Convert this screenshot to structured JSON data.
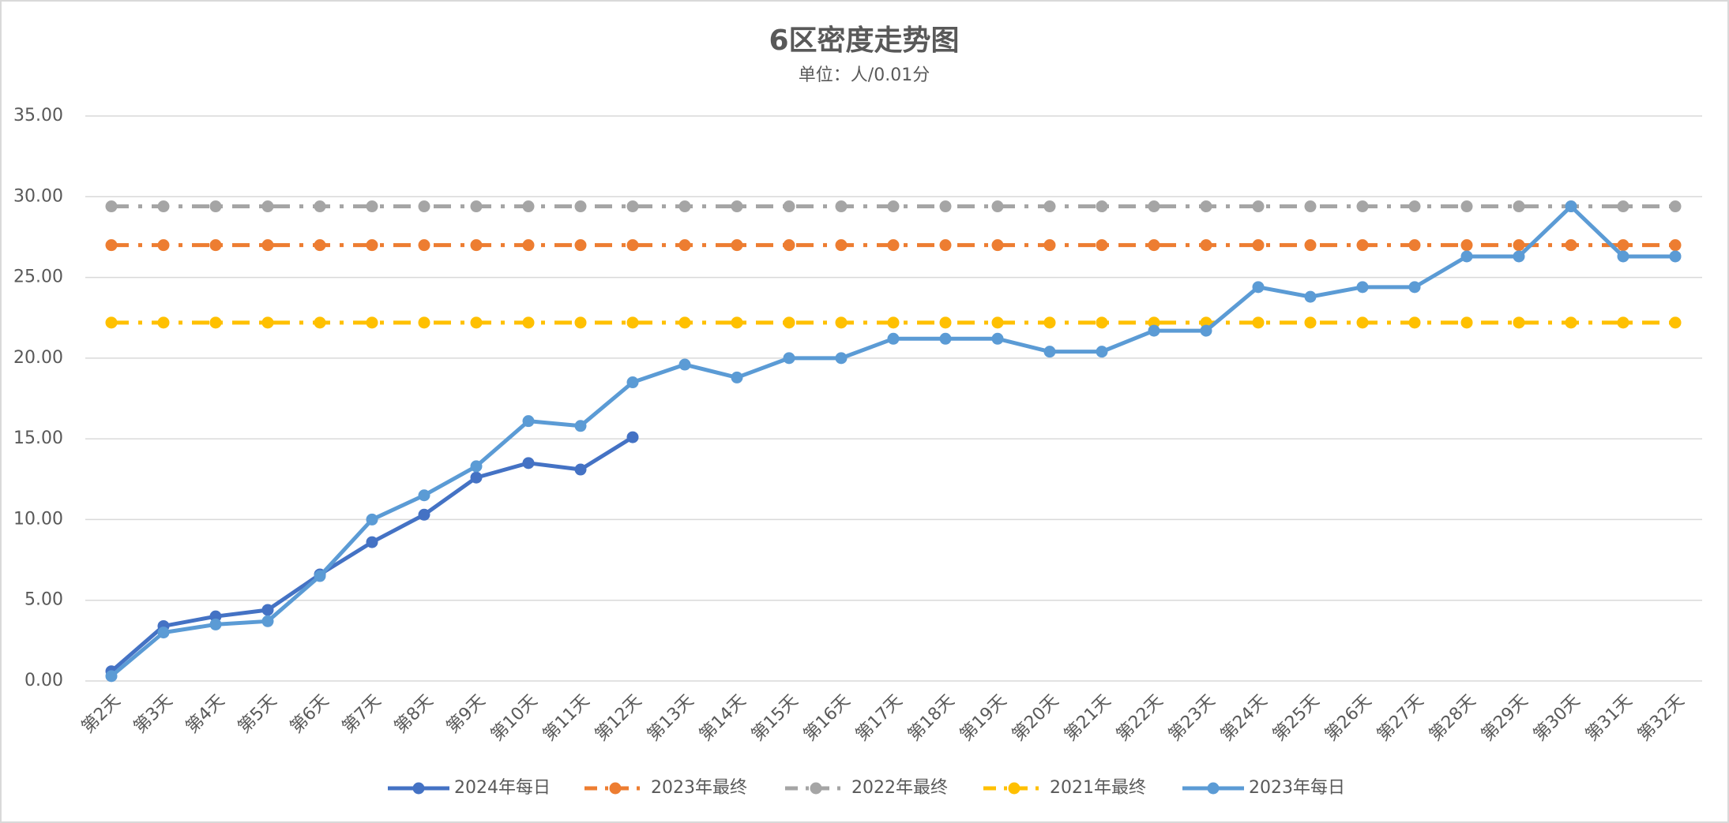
{
  "chart_data": {
    "type": "line",
    "title": "6区密度走势图",
    "subtitle": "单位：人/0.01分",
    "categories": [
      "第2天",
      "第3天",
      "第4天",
      "第5天",
      "第6天",
      "第7天",
      "第8天",
      "第9天",
      "第10天",
      "第11天",
      "第12天",
      "第13天",
      "第14天",
      "第15天",
      "第16天",
      "第17天",
      "第18天",
      "第19天",
      "第20天",
      "第21天",
      "第22天",
      "第23天",
      "第24天",
      "第25天",
      "第26天",
      "第27天",
      "第28天",
      "第29天",
      "第30天",
      "第31天",
      "第32天"
    ],
    "series": [
      {
        "name": "2024年每日",
        "color": "#4472c4",
        "dash": "solid",
        "values": [
          0.6,
          3.4,
          4.0,
          4.4,
          6.6,
          8.6,
          10.3,
          12.6,
          13.5,
          13.1,
          15.1,
          null,
          null,
          null,
          null,
          null,
          null,
          null,
          null,
          null,
          null,
          null,
          null,
          null,
          null,
          null,
          null,
          null,
          null,
          null,
          null
        ]
      },
      {
        "name": "2023年最终",
        "color": "#ed7d31",
        "dash": "dash-dot",
        "values": [
          27.0,
          27.0,
          27.0,
          27.0,
          27.0,
          27.0,
          27.0,
          27.0,
          27.0,
          27.0,
          27.0,
          27.0,
          27.0,
          27.0,
          27.0,
          27.0,
          27.0,
          27.0,
          27.0,
          27.0,
          27.0,
          27.0,
          27.0,
          27.0,
          27.0,
          27.0,
          27.0,
          27.0,
          27.0,
          27.0,
          27.0
        ]
      },
      {
        "name": "2022年最终",
        "color": "#a5a5a5",
        "dash": "dash-dot",
        "values": [
          29.4,
          29.4,
          29.4,
          29.4,
          29.4,
          29.4,
          29.4,
          29.4,
          29.4,
          29.4,
          29.4,
          29.4,
          29.4,
          29.4,
          29.4,
          29.4,
          29.4,
          29.4,
          29.4,
          29.4,
          29.4,
          29.4,
          29.4,
          29.4,
          29.4,
          29.4,
          29.4,
          29.4,
          29.4,
          29.4,
          29.4
        ]
      },
      {
        "name": "2021年最终",
        "color": "#ffc000",
        "dash": "dash-dot",
        "values": [
          22.2,
          22.2,
          22.2,
          22.2,
          22.2,
          22.2,
          22.2,
          22.2,
          22.2,
          22.2,
          22.2,
          22.2,
          22.2,
          22.2,
          22.2,
          22.2,
          22.2,
          22.2,
          22.2,
          22.2,
          22.2,
          22.2,
          22.2,
          22.2,
          22.2,
          22.2,
          22.2,
          22.2,
          22.2,
          22.2,
          22.2
        ]
      },
      {
        "name": "2023年每日",
        "color": "#5b9bd5",
        "dash": "solid",
        "values": [
          0.3,
          3.0,
          3.5,
          3.7,
          6.5,
          10.0,
          11.5,
          13.3,
          16.1,
          15.8,
          18.5,
          19.6,
          18.8,
          20.0,
          20.0,
          21.2,
          21.2,
          21.2,
          20.4,
          20.4,
          21.7,
          21.7,
          24.4,
          23.8,
          24.4,
          24.4,
          26.3,
          26.3,
          29.4,
          26.3,
          26.3
        ]
      }
    ],
    "ylim": [
      0,
      35
    ],
    "yticks": [
      {
        "value": 0,
        "label": "0.00"
      },
      {
        "value": 5,
        "label": "5.00"
      },
      {
        "value": 10,
        "label": "10.00"
      },
      {
        "value": 15,
        "label": "15.00"
      },
      {
        "value": 20,
        "label": "20.00"
      },
      {
        "value": 25,
        "label": "25.00"
      },
      {
        "value": 30,
        "label": "30.00"
      },
      {
        "value": 35,
        "label": "35.00"
      }
    ],
    "grid": true,
    "legend": "bottom"
  }
}
